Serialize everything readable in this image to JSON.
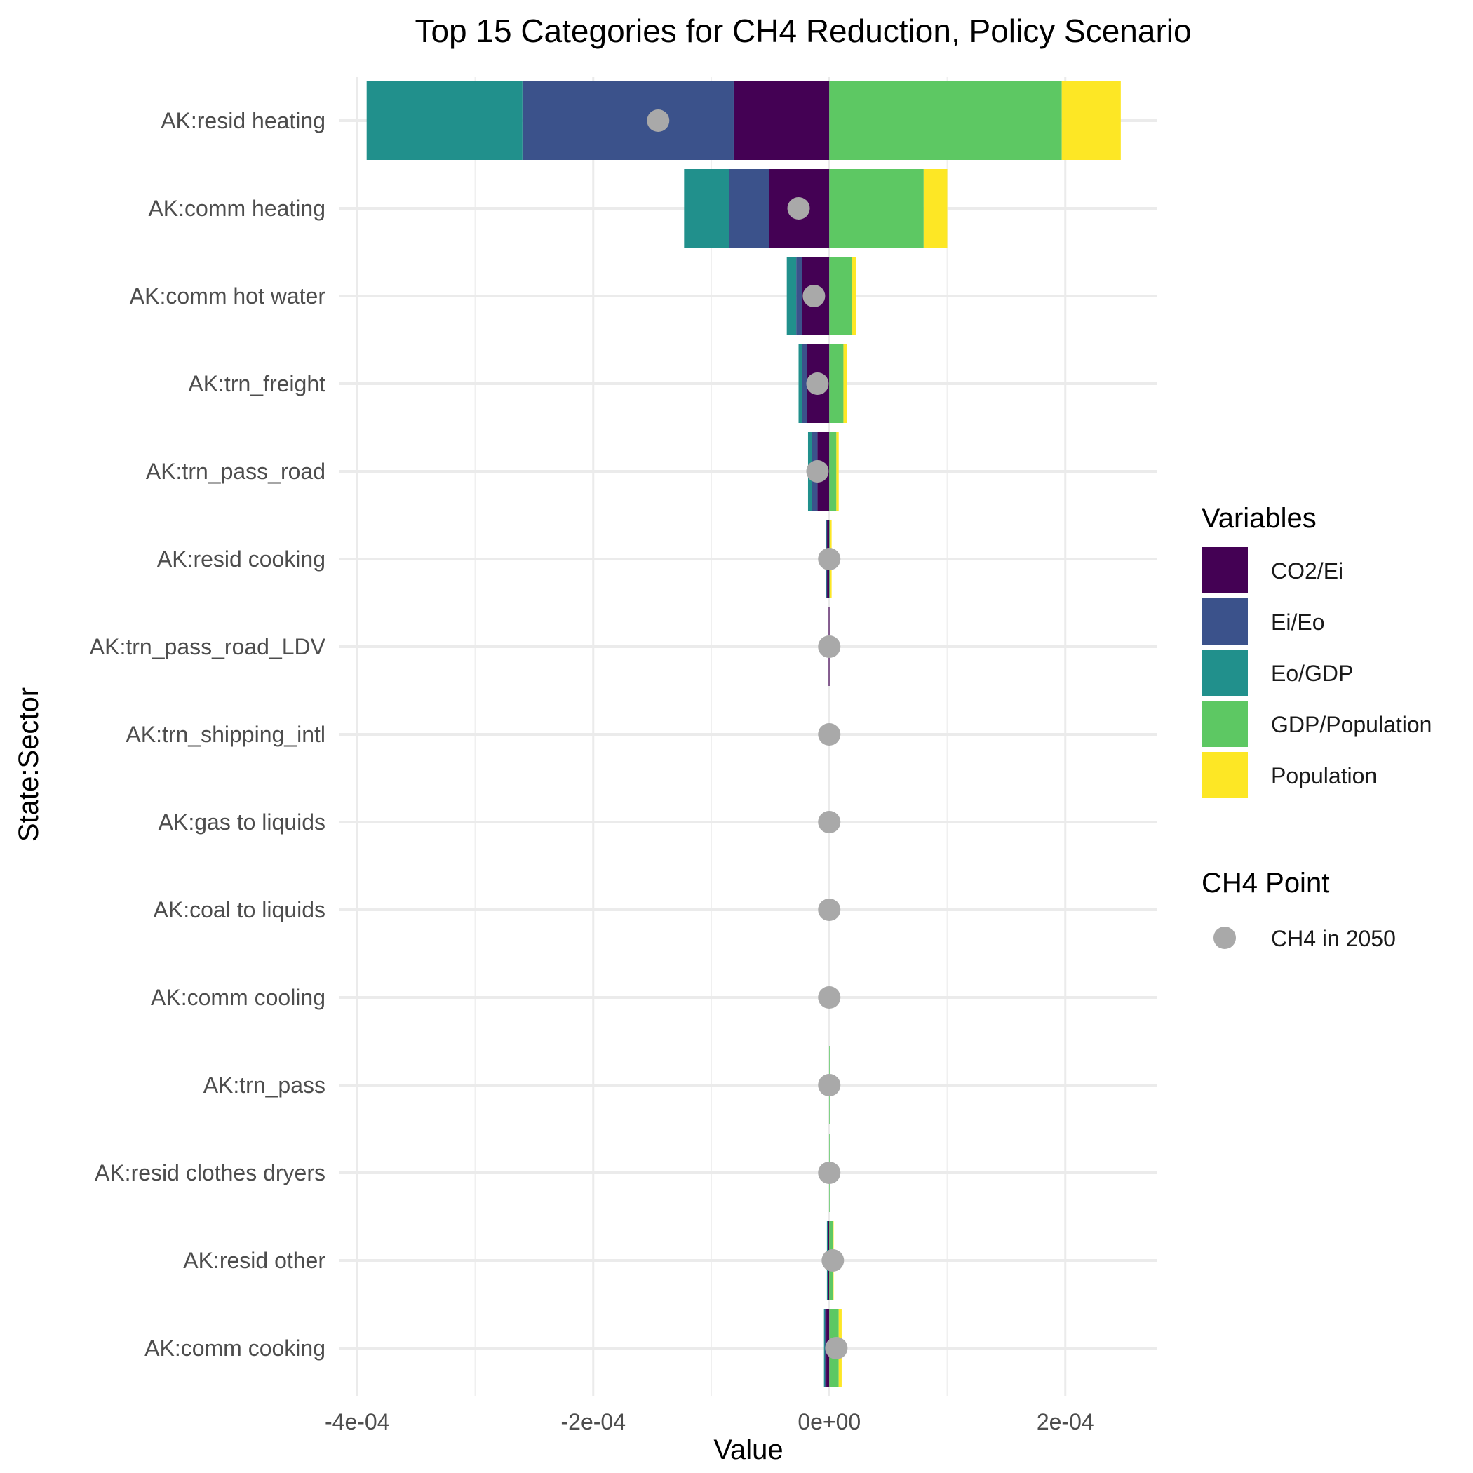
{
  "chart_data": {
    "type": "bar",
    "orientation": "horizontal",
    "stacked": true,
    "title": "Top 15 Categories for CH4 Reduction, Policy Scenario",
    "xlabel": "Value",
    "ylabel": "State:Sector",
    "xlim": [
      -0.000415,
      0.000278
    ],
    "x_ticks": [
      {
        "value": -0.0004,
        "label": "-4e-04"
      },
      {
        "value": -0.0002,
        "label": "-2e-04"
      },
      {
        "value": 0,
        "label": "0e+00"
      },
      {
        "value": 0.0002,
        "label": "2e-04"
      }
    ],
    "grid": true,
    "legend_position": "right",
    "categories": [
      "AK:resid heating",
      "AK:comm heating",
      "AK:comm hot water",
      "AK:trn_freight",
      "AK:trn_pass_road",
      "AK:resid cooking",
      "AK:trn_pass_road_LDV",
      "AK:trn_shipping_intl",
      "AK:gas to liquids",
      "AK:coal to liquids",
      "AK:comm cooling",
      "AK:trn_pass",
      "AK:resid clothes dryers",
      "AK:resid other",
      "AK:comm cooking"
    ],
    "series": [
      {
        "name": "CO2/Ei",
        "color": "#440154",
        "values": [
          -8.1e-05,
          -5.1e-05,
          -2.3e-05,
          -1.9e-05,
          -1e-05,
          -2e-06,
          -5e-07,
          0,
          0,
          0,
          0,
          0,
          0,
          -1e-06,
          -2.5e-06
        ]
      },
      {
        "name": "Ei/Eo",
        "color": "#3B528B",
        "values": [
          -0.000179,
          -3.4e-05,
          -5e-06,
          -4e-06,
          -5e-06,
          -5e-07,
          0,
          0,
          0,
          0,
          0,
          0,
          0,
          -5e-07,
          -1.5e-06
        ]
      },
      {
        "name": "Eo/GDP",
        "color": "#21908C",
        "values": [
          -0.000132,
          -3.8e-05,
          -8e-06,
          -3e-06,
          -3e-06,
          -5e-07,
          0,
          0,
          0,
          0,
          0,
          0,
          0,
          -5e-07,
          -5e-07
        ]
      },
      {
        "name": "GDP/Population",
        "color": "#5DC863",
        "values": [
          0.000197,
          8e-05,
          1.9e-05,
          1.2e-05,
          6e-06,
          1e-06,
          0,
          0,
          0,
          0,
          0,
          5e-07,
          5e-07,
          3e-06,
          8e-06
        ]
      },
      {
        "name": "Population",
        "color": "#FDE725",
        "values": [
          5e-05,
          2e-05,
          4e-06,
          3e-06,
          2e-06,
          1e-06,
          0,
          0,
          0,
          0,
          0,
          0,
          0,
          5e-07,
          2.5e-06
        ]
      }
    ],
    "points": {
      "name": "CH4 in 2050",
      "color": "#A9A9A9",
      "values": [
        -0.000145,
        -2.6e-05,
        -1.3e-05,
        -1e-05,
        -1e-05,
        0,
        0,
        0,
        0,
        0,
        0,
        0,
        0,
        3e-06,
        6e-06
      ]
    },
    "legends": {
      "variables_title": "Variables",
      "point_title": "CH4 Point"
    }
  }
}
